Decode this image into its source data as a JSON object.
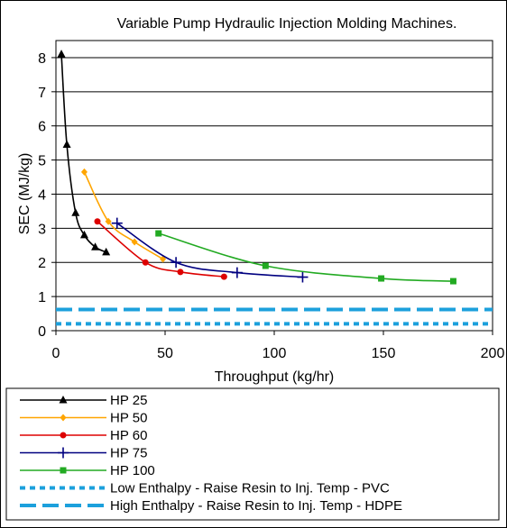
{
  "chart_data": {
    "type": "line",
    "title": "Variable Pump Hydraulic Injection Molding Machines.",
    "xlabel": "Throughput (kg/hr)",
    "ylabel": "SEC (MJ/kg)",
    "xlim": [
      0,
      200
    ],
    "ylim": [
      0,
      8.5
    ],
    "xticks": [
      "0",
      "50",
      "100",
      "150",
      "200"
    ],
    "yticks": [
      "0",
      "1",
      "2",
      "3",
      "4",
      "5",
      "6",
      "7",
      "8"
    ],
    "grid": "horizontal",
    "legend_position": "bottom",
    "series": [
      {
        "name": "HP 25",
        "color": "#000000",
        "marker": "triangle",
        "style": "solid",
        "x": [
          2.5,
          5,
          9,
          13,
          18,
          23
        ],
        "y": [
          8.1,
          5.45,
          3.45,
          2.8,
          2.45,
          2.3
        ]
      },
      {
        "name": "HP 50",
        "color": "#FFA500",
        "marker": "diamond",
        "style": "solid",
        "x": [
          13,
          24,
          36,
          49
        ],
        "y": [
          4.65,
          3.2,
          2.6,
          2.1
        ]
      },
      {
        "name": "HP 60",
        "color": "#DD0000",
        "marker": "circle",
        "style": "solid",
        "x": [
          19,
          41,
          57,
          77
        ],
        "y": [
          3.2,
          2.0,
          1.72,
          1.58
        ]
      },
      {
        "name": "HP 75",
        "color": "#000080",
        "marker": "plus",
        "style": "solid",
        "x": [
          28,
          55,
          83,
          113
        ],
        "y": [
          3.15,
          2.0,
          1.7,
          1.57
        ]
      },
      {
        "name": "HP 100",
        "color": "#22AA22",
        "marker": "square",
        "style": "solid",
        "x": [
          47,
          96,
          149,
          182
        ],
        "y": [
          2.85,
          1.9,
          1.53,
          1.45
        ]
      },
      {
        "name": "Low Enthalpy -  Raise Resin to Inj. Temp - PVC",
        "color": "#1CA0DC",
        "marker": "none",
        "style": "dotted",
        "x": [
          0,
          200
        ],
        "y": [
          0.2,
          0.2
        ]
      },
      {
        "name": "High Enthalpy - Raise Resin to Inj. Temp - HDPE",
        "color": "#1CA0DC",
        "marker": "none",
        "style": "dashed",
        "x": [
          0,
          200
        ],
        "y": [
          0.62,
          0.62
        ]
      }
    ]
  }
}
